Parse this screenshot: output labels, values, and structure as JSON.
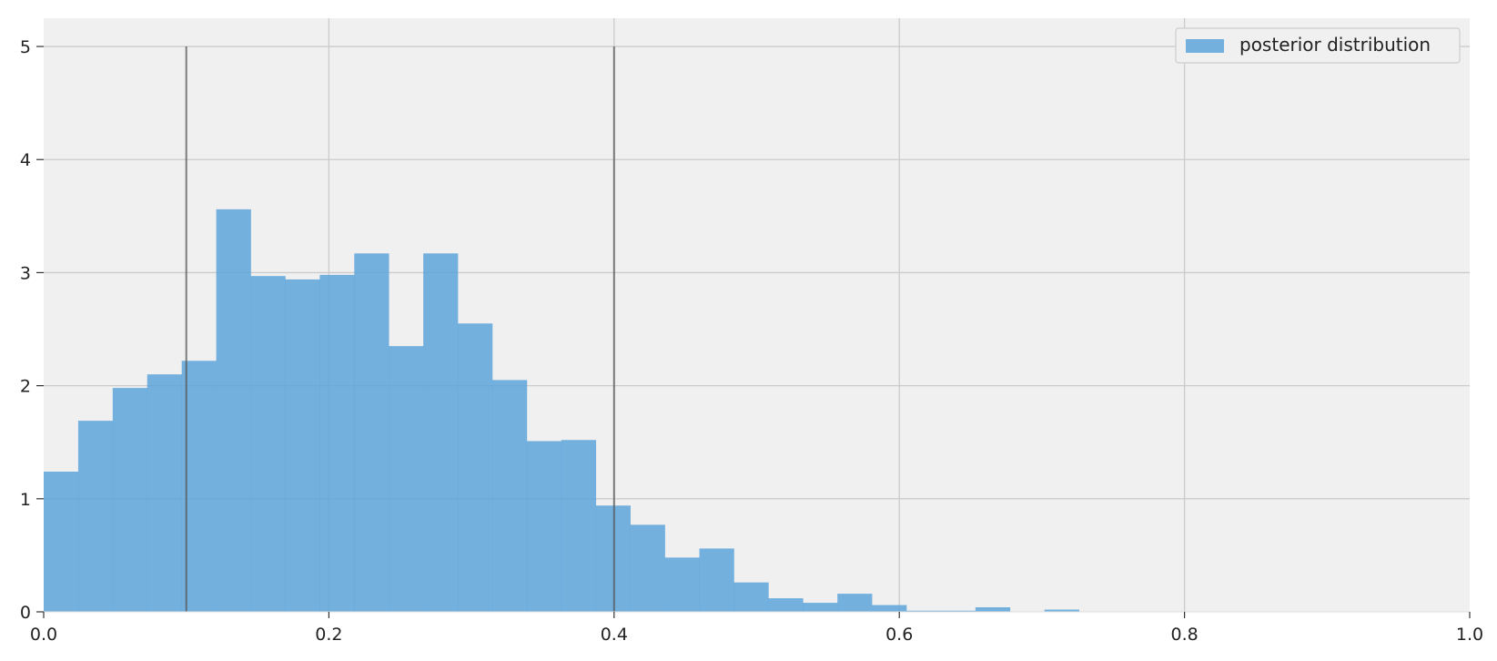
{
  "chart_data": {
    "type": "bar",
    "subtype": "histogram",
    "title": "",
    "xlabel": "",
    "ylabel": "",
    "xlim": [
      0.0,
      1.0
    ],
    "ylim": [
      0,
      5.25
    ],
    "grid": true,
    "xticks": [
      "0.0",
      "0.2",
      "0.4",
      "0.6",
      "0.8",
      "1.0"
    ],
    "xtick_values": [
      0.0,
      0.2,
      0.4,
      0.6,
      0.8,
      1.0
    ],
    "yticks": [
      "0",
      "1",
      "2",
      "3",
      "4",
      "5"
    ],
    "ytick_values": [
      0,
      1,
      2,
      3,
      4,
      5
    ],
    "legend": {
      "position": "top-right",
      "entries": [
        "posterior distribution"
      ]
    },
    "series": [
      {
        "name": "posterior distribution",
        "color": "#5DA5DA",
        "bin_edges": [
          0.0,
          0.0242,
          0.0484,
          0.0726,
          0.0968,
          0.121,
          0.1452,
          0.1694,
          0.1936,
          0.2178,
          0.242,
          0.2662,
          0.2904,
          0.3146,
          0.3388,
          0.363,
          0.3872,
          0.4114,
          0.4356,
          0.4598,
          0.484,
          0.5082,
          0.5324,
          0.5566,
          0.5808,
          0.605,
          0.6292,
          0.6534,
          0.6776,
          0.7018,
          0.726
        ],
        "values": [
          1.24,
          1.69,
          1.98,
          2.1,
          2.22,
          3.56,
          2.97,
          2.94,
          2.98,
          3.17,
          2.35,
          3.17,
          2.55,
          2.05,
          1.51,
          1.52,
          0.94,
          0.77,
          0.48,
          0.56,
          0.26,
          0.12,
          0.08,
          0.16,
          0.06,
          0.01,
          0.01,
          0.04,
          0.0,
          0.02
        ]
      }
    ],
    "vlines": {
      "color": "#555555",
      "x": [
        0.1,
        0.4
      ],
      "y_top": 5.0
    }
  }
}
